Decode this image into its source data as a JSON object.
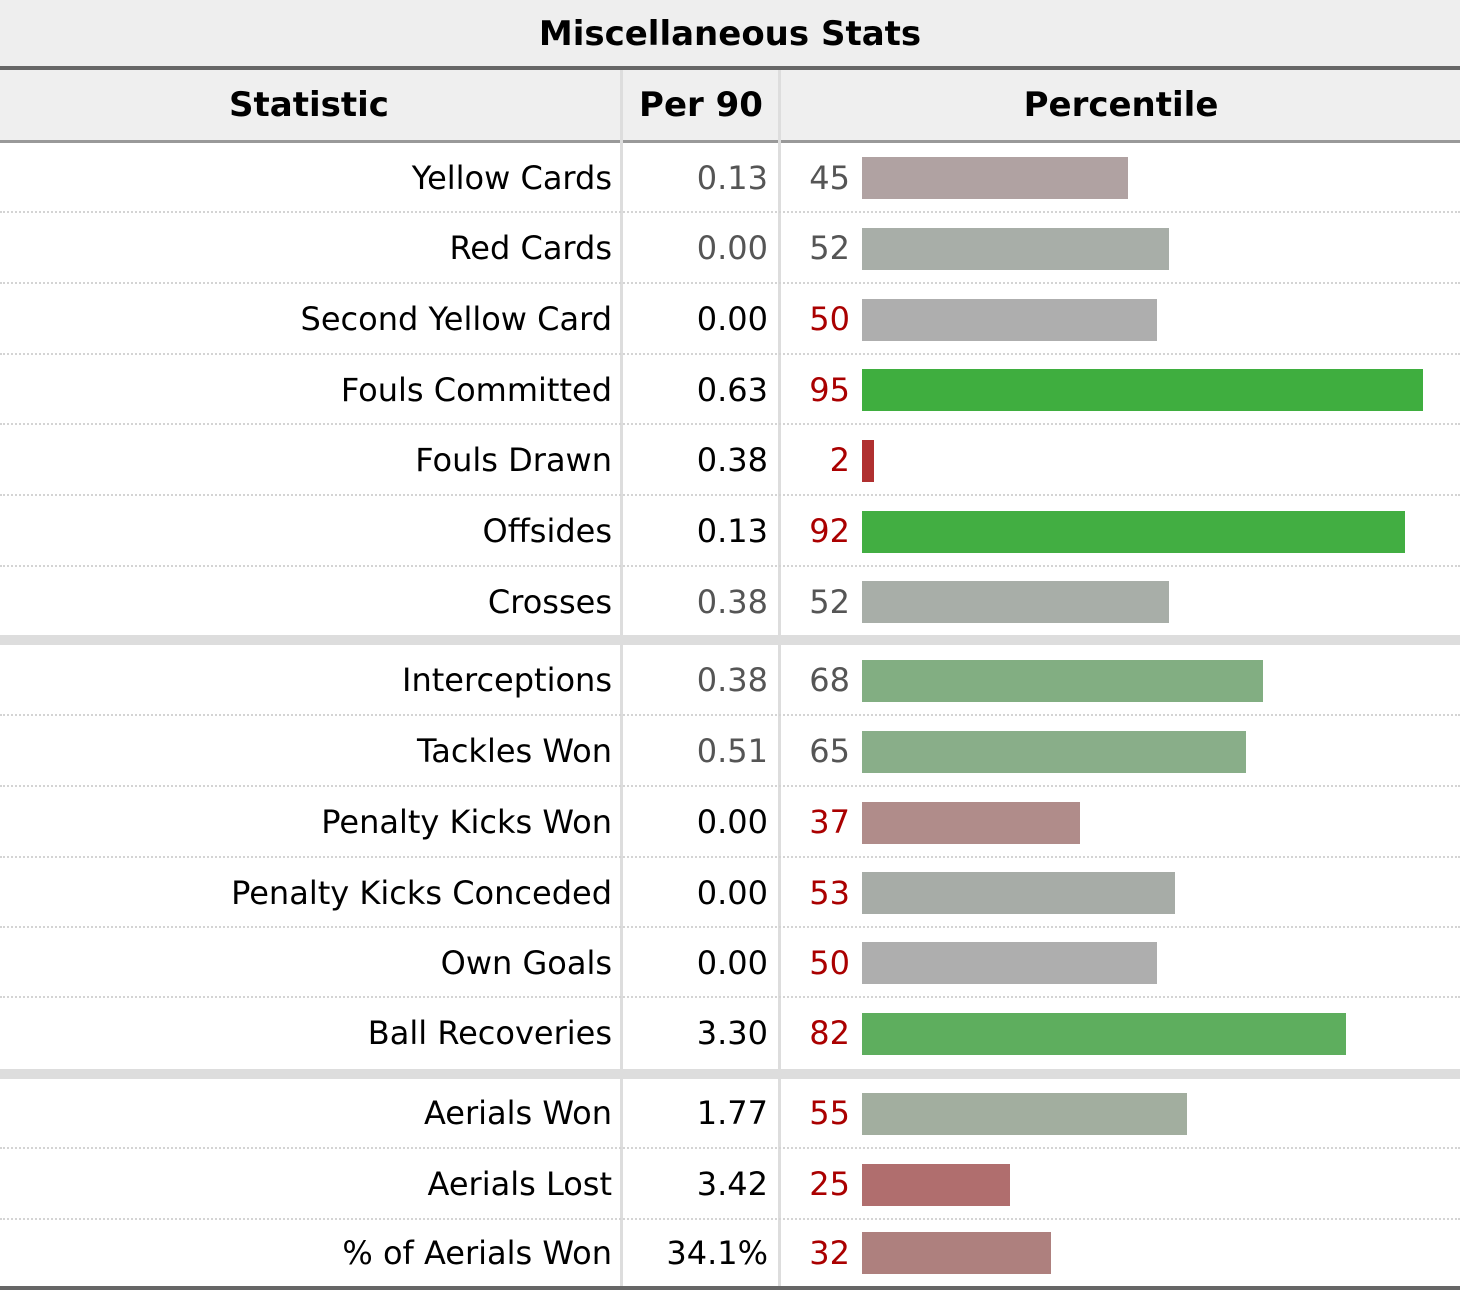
{
  "table": {
    "caption": "Miscellaneous Stats",
    "headers": {
      "statistic": "Statistic",
      "per90": "Per 90",
      "percentile": "Percentile"
    },
    "groups": [
      [
        {
          "stat": "Yellow Cards",
          "per90": "0.13",
          "percentile": "45",
          "pct_value": 45,
          "per90_color": "#555555",
          "pct_color": "#555555",
          "bar_color": "#b0a2a2"
        },
        {
          "stat": "Red Cards",
          "per90": "0.00",
          "percentile": "52",
          "pct_value": 52,
          "per90_color": "#555555",
          "pct_color": "#555555",
          "bar_color": "#a8aea8"
        },
        {
          "stat": "Second Yellow Card",
          "per90": "0.00",
          "percentile": "50",
          "pct_value": 50,
          "per90_color": "#000000",
          "pct_color": "#aa0000",
          "bar_color": "#aeaeae"
        },
        {
          "stat": "Fouls Committed",
          "per90": "0.63",
          "percentile": "95",
          "pct_value": 95,
          "per90_color": "#000000",
          "pct_color": "#aa0000",
          "bar_color": "#3fae3f"
        },
        {
          "stat": "Fouls Drawn",
          "per90": "0.38",
          "percentile": "2",
          "pct_value": 2,
          "per90_color": "#000000",
          "pct_color": "#aa0000",
          "bar_color": "#b03030"
        },
        {
          "stat": "Offsides",
          "per90": "0.13",
          "percentile": "92",
          "pct_value": 92,
          "per90_color": "#000000",
          "pct_color": "#aa0000",
          "bar_color": "#42ae42"
        },
        {
          "stat": "Crosses",
          "per90": "0.38",
          "percentile": "52",
          "pct_value": 52,
          "per90_color": "#555555",
          "pct_color": "#555555",
          "bar_color": "#a8aea8"
        }
      ],
      [
        {
          "stat": "Interceptions",
          "per90": "0.38",
          "percentile": "68",
          "pct_value": 68,
          "per90_color": "#555555",
          "pct_color": "#555555",
          "bar_color": "#82ae82"
        },
        {
          "stat": "Tackles Won",
          "per90": "0.51",
          "percentile": "65",
          "pct_value": 65,
          "per90_color": "#555555",
          "pct_color": "#555555",
          "bar_color": "#89ae89"
        },
        {
          "stat": "Penalty Kicks Won",
          "per90": "0.00",
          "percentile": "37",
          "pct_value": 37,
          "per90_color": "#000000",
          "pct_color": "#aa0000",
          "bar_color": "#b08c8a"
        },
        {
          "stat": "Penalty Kicks Conceded",
          "per90": "0.00",
          "percentile": "53",
          "pct_value": 53,
          "per90_color": "#000000",
          "pct_color": "#aa0000",
          "bar_color": "#a7aca7"
        },
        {
          "stat": "Own Goals",
          "per90": "0.00",
          "percentile": "50",
          "pct_value": 50,
          "per90_color": "#000000",
          "pct_color": "#aa0000",
          "bar_color": "#aeaeae"
        },
        {
          "stat": "Ball Recoveries",
          "per90": "3.30",
          "percentile": "82",
          "pct_value": 82,
          "per90_color": "#000000",
          "pct_color": "#aa0000",
          "bar_color": "#5eae5e"
        }
      ],
      [
        {
          "stat": "Aerials Won",
          "per90": "1.77",
          "percentile": "55",
          "pct_value": 55,
          "per90_color": "#000000",
          "pct_color": "#aa0000",
          "bar_color": "#a2ae9f"
        },
        {
          "stat": "Aerials Lost",
          "per90": "3.42",
          "percentile": "25",
          "pct_value": 25,
          "per90_color": "#000000",
          "pct_color": "#aa0000",
          "bar_color": "#b06e6e"
        },
        {
          "stat": "% of Aerials Won",
          "per90": "34.1%",
          "percentile": "32",
          "pct_value": 32,
          "per90_color": "#000000",
          "pct_color": "#aa0000",
          "bar_color": "#ae807e"
        }
      ]
    ]
  }
}
